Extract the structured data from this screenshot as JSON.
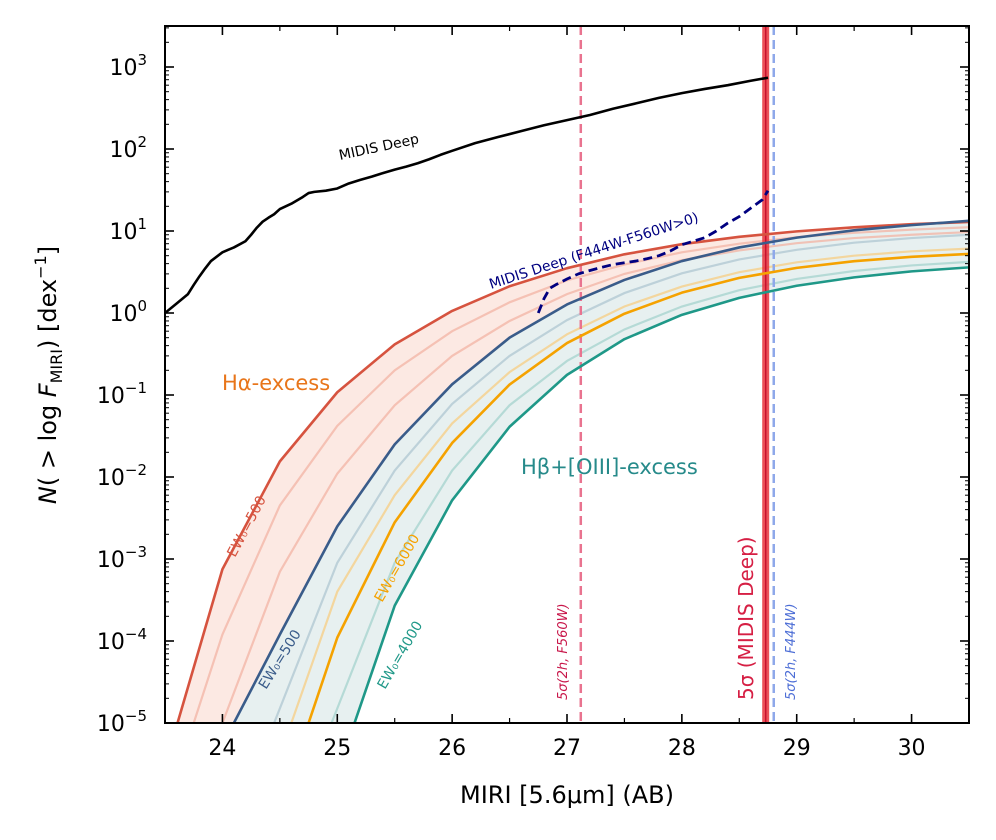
{
  "chart_data": {
    "type": "line",
    "xlabel": "MIRI [5.6μm] (AB)",
    "ylabel_parts": {
      "n": "N",
      "open": "( > log ",
      "f": "F",
      "sub": "MIRI",
      "close": ") [dex",
      "sup": "−1",
      "end": "]"
    },
    "xlim": [
      23.5,
      30.5
    ],
    "ylim_log10": [
      -5,
      3.5
    ],
    "yscale": "log",
    "x_ticks": [
      24,
      25,
      26,
      27,
      28,
      29,
      30
    ],
    "y_tick_exponents": [
      -5,
      -4,
      -3,
      -2,
      -1,
      0,
      1,
      2,
      3
    ],
    "colors": {
      "midis": "#000000",
      "midis_red": "#000080",
      "ha": "#d6533f",
      "ha_fill": "#fbe3dc",
      "ha_light": "#f3b7a7",
      "hb": "#3a5c8a",
      "hb_fill": "#e1ecec",
      "hb_light": "#b3c9d3",
      "o3": "#f5a200",
      "o3_light": "#f6cf8a",
      "o3b": "#1f9888",
      "o3b_light": "#a9d5cf",
      "deep5": "#e8333b",
      "f560": "#e9738f",
      "f444": "#8ea8ea",
      "ha_text": "#e8751a",
      "hb_text": "#268a8a",
      "deep_text": "#d61f44",
      "f560_text": "#c8174a",
      "f444_text": "#4d6ed6"
    },
    "series": [
      {
        "name": "MIDIS Deep",
        "x": [
          23.5,
          23.6,
          23.7,
          23.75,
          23.8,
          23.85,
          23.9,
          24.0,
          24.05,
          24.1,
          24.2,
          24.25,
          24.3,
          24.35,
          24.4,
          24.45,
          24.5,
          24.6,
          24.7,
          24.75,
          24.8,
          24.9,
          25.0,
          25.1,
          25.2,
          25.3,
          25.4,
          25.5,
          25.6,
          25.7,
          25.8,
          25.9,
          26.0,
          26.2,
          26.4,
          26.6,
          26.8,
          27.0,
          27.2,
          27.4,
          27.6,
          27.8,
          28.0,
          28.2,
          28.4,
          28.6,
          28.75
        ],
        "y": [
          1.0,
          1.3,
          1.7,
          2.2,
          2.8,
          3.5,
          4.3,
          5.5,
          5.9,
          6.3,
          7.5,
          9.0,
          11.0,
          13.0,
          14.5,
          16.0,
          18.5,
          21.5,
          26.0,
          29.0,
          30.0,
          31.0,
          33.0,
          38.0,
          42.0,
          46.0,
          51.0,
          56.0,
          61.0,
          67.0,
          75.0,
          85.0,
          95.0,
          118.0,
          140.0,
          165.0,
          195.0,
          225.0,
          260.0,
          310.0,
          360.0,
          420.0,
          480.0,
          540.0,
          600.0,
          680.0,
          740.0
        ]
      },
      {
        "name": "MIDIS Deep (F444W-F560W>0)",
        "x": [
          26.75,
          26.8,
          26.85,
          26.9,
          27.0,
          27.1,
          27.2,
          27.3,
          27.4,
          27.5,
          27.6,
          27.7,
          27.8,
          27.9,
          28.0,
          28.1,
          28.2,
          28.3,
          28.4,
          28.5,
          28.6,
          28.7,
          28.75
        ],
        "y": [
          1.0,
          1.5,
          2.0,
          2.2,
          2.6,
          3.0,
          3.3,
          3.6,
          3.9,
          4.1,
          4.3,
          4.6,
          5.0,
          5.7,
          6.8,
          7.5,
          8.3,
          10.0,
          12.5,
          15.0,
          19.0,
          24.0,
          31.0
        ]
      },
      {
        "name": "EW0=500 (Hα-excess)",
        "x": [
          23.5,
          24.0,
          24.5,
          25.0,
          25.5,
          26.0,
          26.5,
          27.0,
          27.5,
          28.0,
          28.5,
          29.0,
          29.5,
          30.0,
          30.5
        ],
        "y": [
          3e-06,
          0.00075,
          0.0155,
          0.108,
          0.415,
          1.06,
          2.12,
          3.52,
          5.2,
          6.9,
          8.5,
          9.9,
          11.1,
          12.1,
          12.9
        ]
      },
      {
        "name": "EW0=500 (Hβ+[OIII]-excess)",
        "x": [
          24.1,
          24.5,
          25.0,
          25.5,
          26.0,
          26.5,
          27.0,
          27.5,
          28.0,
          28.5,
          29.0,
          29.5,
          30.0,
          30.5
        ],
        "y": [
          1e-05,
          0.00012,
          0.0025,
          0.025,
          0.135,
          0.5,
          1.27,
          2.53,
          4.3,
          6.3,
          8.3,
          10.2,
          11.8,
          13.3
        ]
      },
      {
        "name": "EW0=6000",
        "x": [
          24.75,
          25.0,
          25.5,
          26.0,
          26.5,
          27.0,
          27.5,
          28.0,
          28.5,
          29.0,
          29.5,
          30.0,
          30.5
        ],
        "y": [
          1e-05,
          0.00011,
          0.0028,
          0.026,
          0.134,
          0.43,
          0.98,
          1.77,
          2.68,
          3.55,
          4.28,
          4.85,
          5.25
        ]
      },
      {
        "name": "EW0=4000",
        "x": [
          25.15,
          25.5,
          26.0,
          26.5,
          27.0,
          27.5,
          28.0,
          28.5,
          29.0,
          29.5,
          30.0,
          30.5
        ],
        "y": [
          1e-05,
          0.00027,
          0.0052,
          0.041,
          0.176,
          0.48,
          0.95,
          1.53,
          2.15,
          2.72,
          3.22,
          3.6
        ]
      }
    ],
    "light_curves": [
      {
        "color_key": "ha_light",
        "x": [
          23.75,
          24.0,
          24.5,
          25.0,
          25.5,
          26.0,
          26.5,
          27.0,
          27.5,
          28.0,
          28.5,
          29.0,
          29.5,
          30.0,
          30.5
        ],
        "y": [
          1e-05,
          0.00012,
          0.0045,
          0.042,
          0.2,
          0.6,
          1.35,
          2.5,
          3.9,
          5.5,
          7.0,
          8.4,
          9.5,
          10.4,
          11.1
        ]
      },
      {
        "color_key": "ha_light",
        "x": [
          24.0,
          24.5,
          25.0,
          25.5,
          26.0,
          26.5,
          27.0,
          27.5,
          28.0,
          28.5,
          29.0,
          29.5,
          30.0,
          30.5
        ],
        "y": [
          1e-05,
          0.0007,
          0.011,
          0.075,
          0.3,
          0.8,
          1.7,
          3.0,
          4.4,
          5.8,
          7.1,
          8.2,
          9.0,
          9.7
        ]
      },
      {
        "color_key": "hb_light",
        "x": [
          24.45,
          25.0,
          25.5,
          26.0,
          26.5,
          27.0,
          27.5,
          28.0,
          28.5,
          29.0,
          29.5,
          30.0,
          30.5
        ],
        "y": [
          1e-05,
          0.0009,
          0.012,
          0.078,
          0.3,
          0.82,
          1.75,
          3.05,
          4.5,
          5.9,
          7.2,
          8.2,
          9.0
        ]
      },
      {
        "color_key": "o3_light",
        "x": [
          24.6,
          25.0,
          25.5,
          26.0,
          26.5,
          27.0,
          27.5,
          28.0,
          28.5,
          29.0,
          29.5,
          30.0,
          30.5
        ],
        "y": [
          1e-05,
          0.0004,
          0.006,
          0.045,
          0.19,
          0.55,
          1.2,
          2.1,
          3.15,
          4.15,
          5.0,
          5.65,
          6.1
        ]
      },
      {
        "color_key": "o3b_light",
        "x": [
          24.95,
          25.5,
          26.0,
          26.5,
          27.0,
          27.5,
          28.0,
          28.5,
          29.0,
          29.5,
          30.0,
          30.5
        ],
        "y": [
          1e-05,
          0.0009,
          0.012,
          0.075,
          0.26,
          0.63,
          1.2,
          1.9,
          2.6,
          3.25,
          3.8,
          4.2
        ]
      }
    ],
    "bands": [
      {
        "fill_key": "ha_fill",
        "upper_x": [
          23.5,
          24.0,
          24.5,
          25.0,
          25.5,
          26.0,
          26.5,
          27.0,
          27.5,
          28.0,
          28.5,
          29.0,
          29.5,
          30.0,
          30.5
        ],
        "upper_y": [
          3e-06,
          0.00075,
          0.0155,
          0.108,
          0.415,
          1.06,
          2.12,
          3.52,
          5.2,
          6.9,
          8.5,
          9.9,
          11.1,
          12.1,
          12.9
        ],
        "lower_x": [
          24.1,
          24.5,
          25.0,
          25.5,
          26.0,
          26.5,
          27.0,
          27.5,
          28.0,
          28.5,
          29.0,
          29.5,
          30.0,
          30.5
        ],
        "lower_y": [
          1e-05,
          0.00012,
          0.0025,
          0.025,
          0.135,
          0.5,
          1.27,
          2.53,
          4.3,
          6.3,
          8.3,
          10.2,
          11.8,
          13.3
        ]
      },
      {
        "fill_key": "hb_fill",
        "upper_x": [
          24.1,
          24.5,
          25.0,
          25.5,
          26.0,
          26.5,
          27.0,
          27.5,
          28.0,
          28.5,
          29.0,
          29.5,
          30.0,
          30.5
        ],
        "upper_y": [
          1e-05,
          0.00012,
          0.0025,
          0.025,
          0.135,
          0.5,
          1.27,
          2.53,
          4.3,
          6.3,
          8.3,
          10.2,
          11.8,
          13.3
        ],
        "lower_x": [
          25.15,
          25.5,
          26.0,
          26.5,
          27.0,
          27.5,
          28.0,
          28.5,
          29.0,
          29.5,
          30.0,
          30.5
        ],
        "lower_y": [
          1e-05,
          0.00027,
          0.0052,
          0.041,
          0.176,
          0.48,
          0.95,
          1.53,
          2.15,
          2.72,
          3.22,
          3.6
        ]
      }
    ],
    "vlines": [
      {
        "name": "5σ (MIDIS Deep)",
        "x": 28.73,
        "style": "solid"
      },
      {
        "name": "5σ(2h, F560W)",
        "x": 27.12,
        "style": "dashed"
      },
      {
        "name": "5σ(2h, F444W)",
        "x": 28.8,
        "style": "dashed"
      }
    ],
    "annotations": {
      "midis_deep": "MIDIS Deep",
      "midis_red": "MIDIS Deep (F444W-F560W>0)",
      "ha_excess": "Hα-excess",
      "hb_excess": "Hβ+[OIII]-excess",
      "ew_ha": "EW₀=500",
      "ew_hb": "EW₀=500",
      "ew_6000": "EW₀=6000",
      "ew_4000": "EW₀=4000",
      "deep5": "5σ (MIDIS Deep)",
      "f560": "5σ(2h, F560W)",
      "f444": "5σ(2h, F444W)"
    }
  }
}
